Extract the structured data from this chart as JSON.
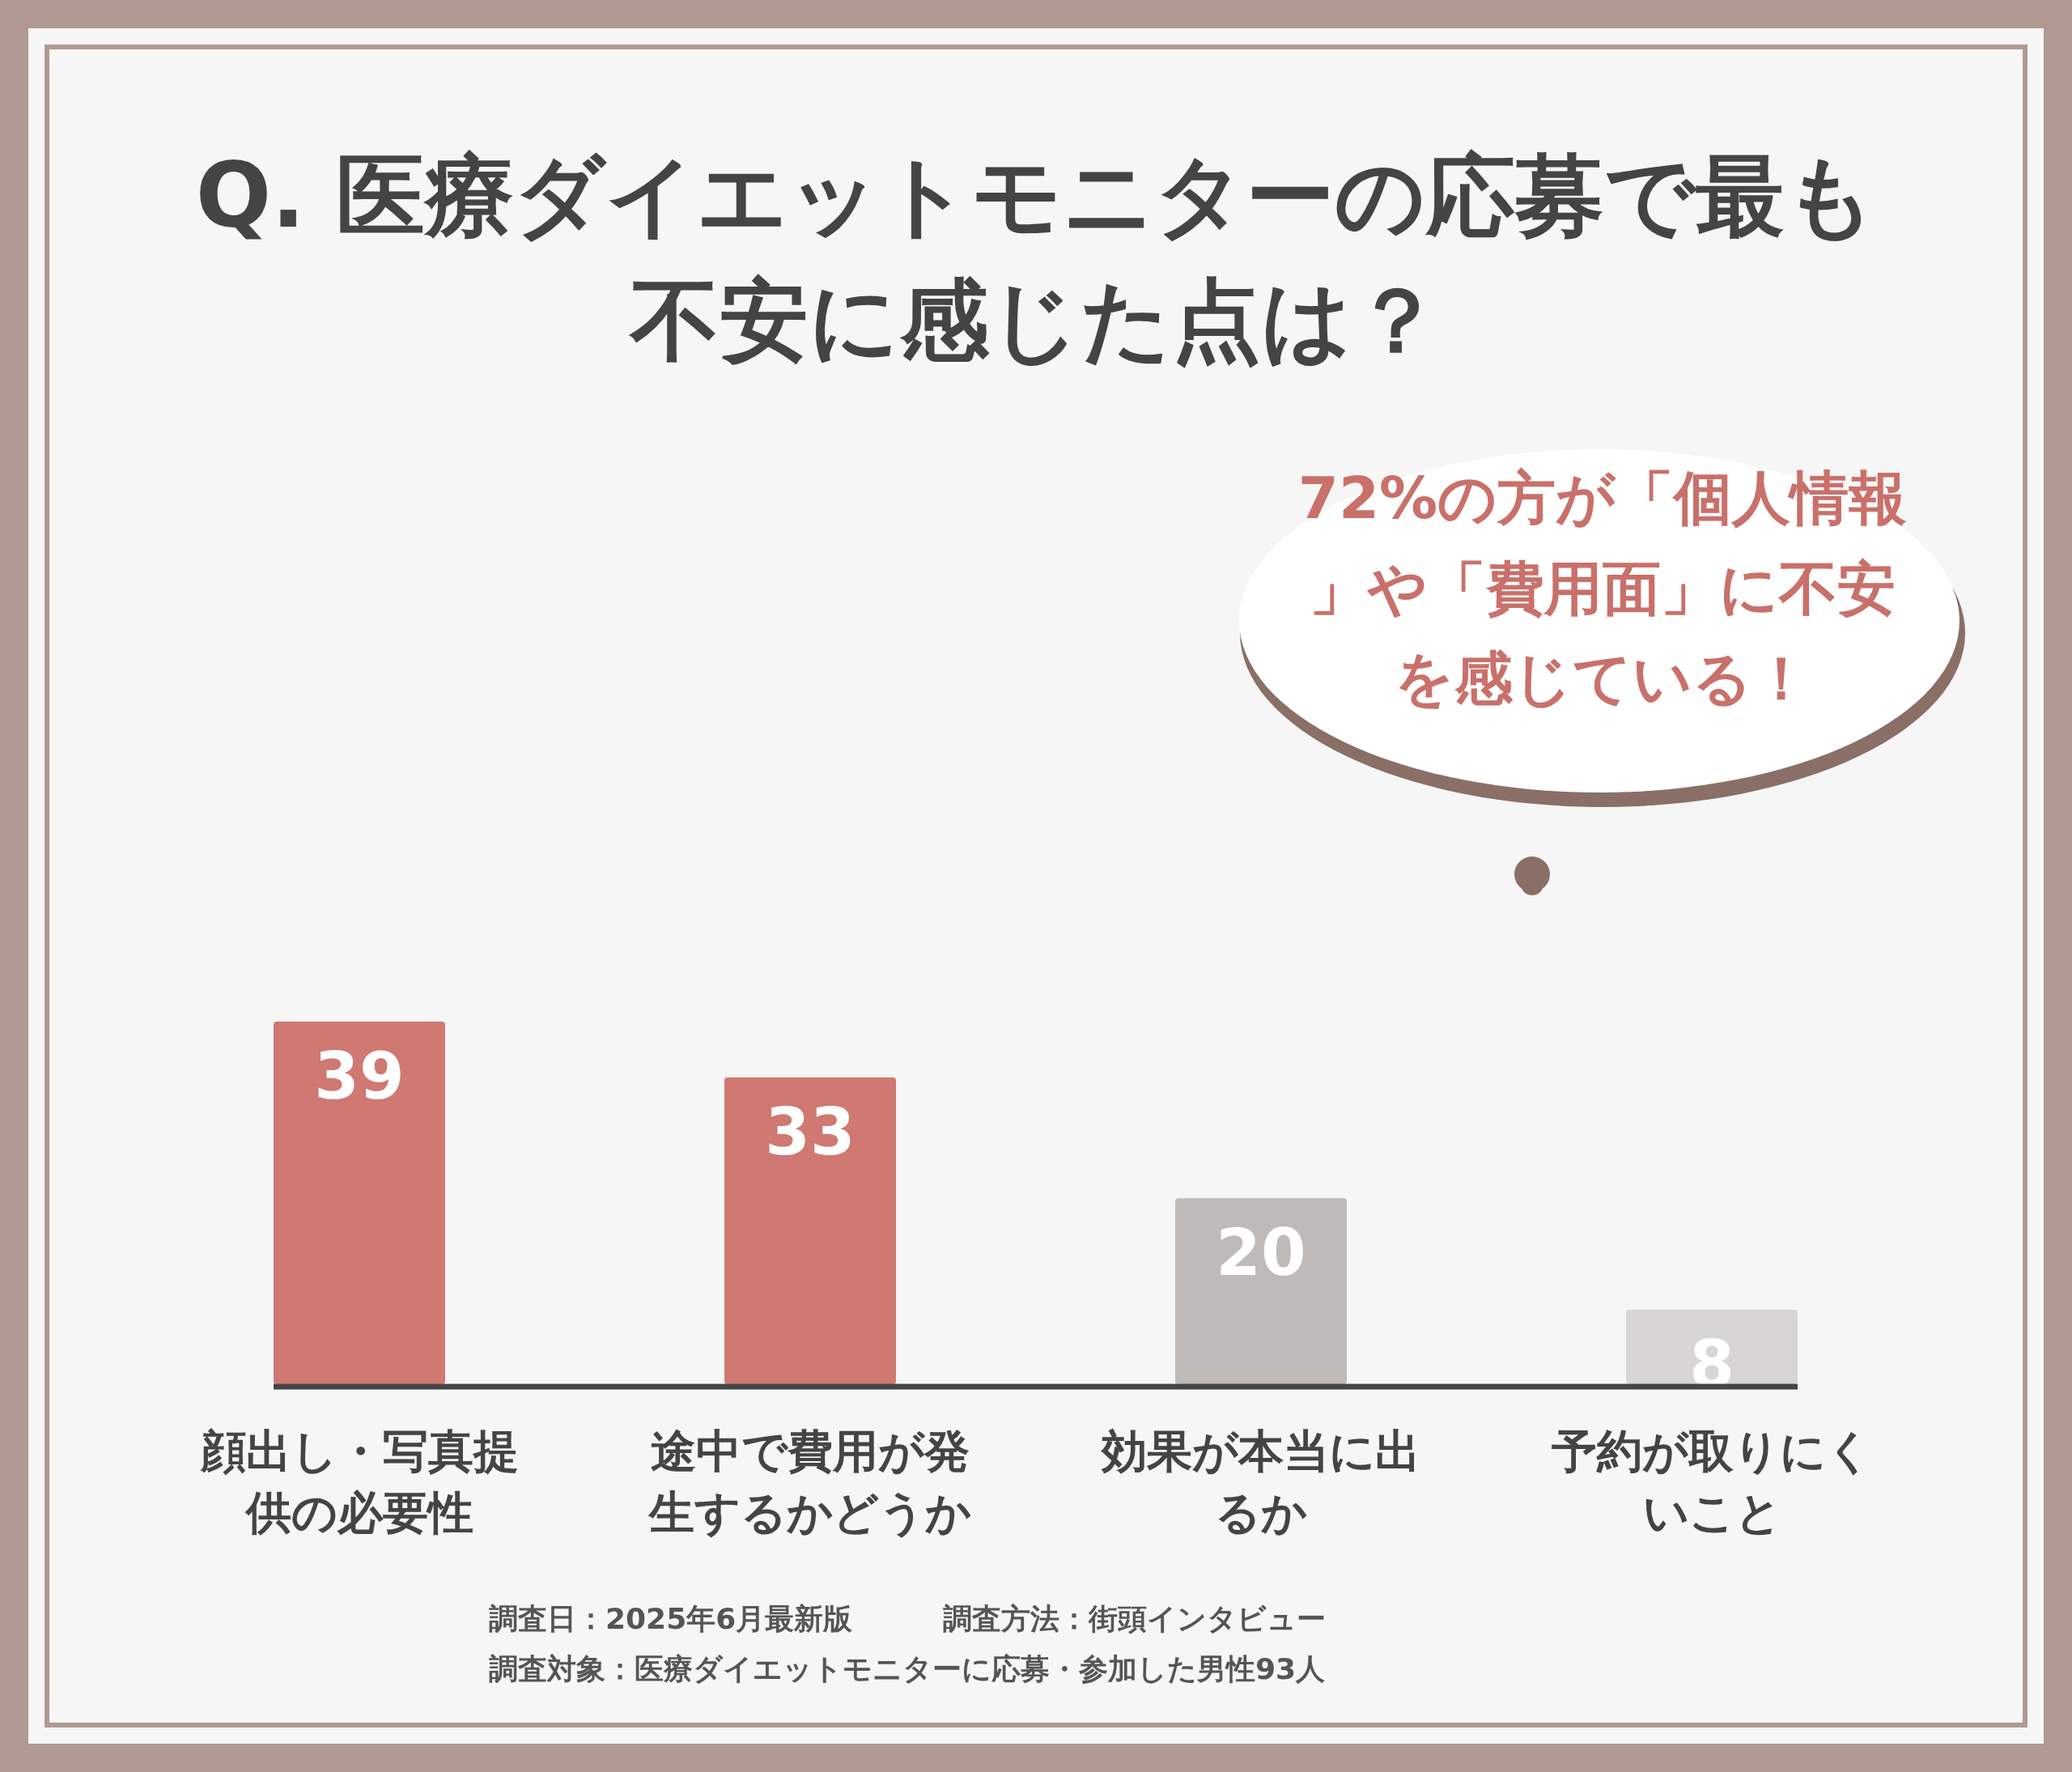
{
  "chart_data": {
    "type": "bar",
    "title": "Q. 医療ダイエットモニターの応募で最も不安に感じた点は？",
    "categories": [
      "顔出し・写真提供の必要性",
      "途中で費用が発生するかどうか",
      "効果が本当に出るか",
      "予約が取りにくいこと"
    ],
    "values": [
      39,
      33,
      20,
      8
    ],
    "colors": [
      "#d07872",
      "#d07872",
      "#bdbab8",
      "#d8d6d5"
    ],
    "data_labels": true,
    "annotations": [
      "72%の方が「個人情報」や「費用面」に不安を感じている！",
      "調査日：2025年6月最新版",
      "調査方法：街頭インタビュー",
      "調査対象：医療ダイエットモニターに応募・参加した男性93人"
    ]
  }
}
